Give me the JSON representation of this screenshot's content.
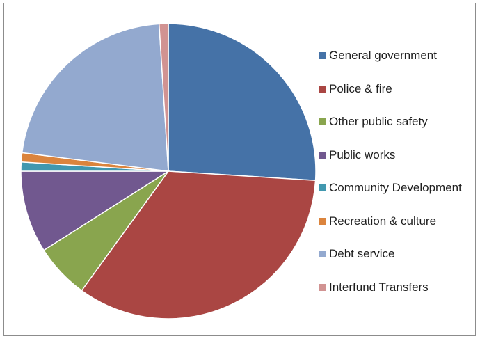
{
  "chart_data": {
    "type": "pie",
    "title": "",
    "legend_position": "right",
    "start_angle_deg": 0,
    "direction": "clockwise",
    "series": [
      {
        "name": "General government",
        "value": 26.0,
        "color": "#4572A7"
      },
      {
        "name": "Police & fire",
        "value": 34.0,
        "color": "#AA4643"
      },
      {
        "name": "Other public safety",
        "value": 6.0,
        "color": "#89A54E"
      },
      {
        "name": "Public works",
        "value": 9.0,
        "color": "#71588F"
      },
      {
        "name": "Community Development",
        "value": 1.0,
        "color": "#4198AF"
      },
      {
        "name": "Recreation & culture",
        "value": 1.0,
        "color": "#DB843D"
      },
      {
        "name": "Debt service",
        "value": 22.0,
        "color": "#93A9CF"
      },
      {
        "name": "Interfund Transfers",
        "value": 1.0,
        "color": "#D19392"
      }
    ]
  }
}
